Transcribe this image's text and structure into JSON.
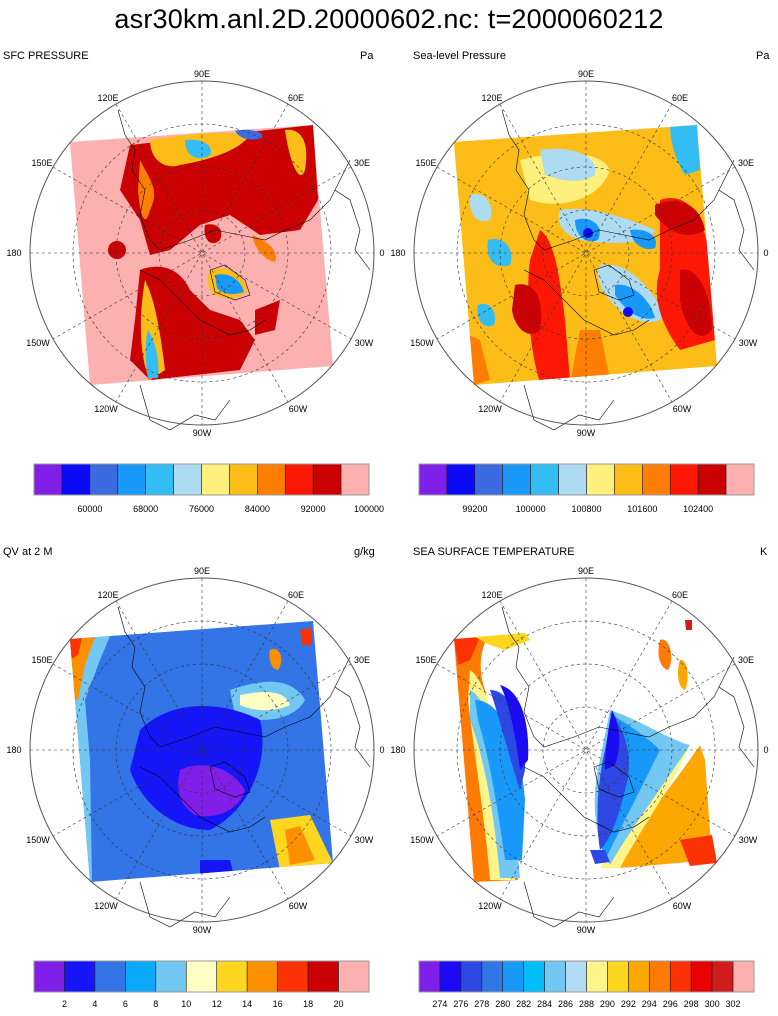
{
  "title": "asr30km.anl.2D.20000602.nc:    t=2000060212",
  "lon_labels": [
    "90E",
    "60E",
    "30E",
    "0",
    "30W",
    "60W",
    "90W",
    "120W",
    "150W",
    "180",
    "150E",
    "120E"
  ],
  "panels": [
    {
      "id": "sfc-pressure",
      "title": "SFC PRESSURE",
      "units": "Pa",
      "colorbar": {
        "colors": [
          "#7f1fe8",
          "#0a0af5",
          "#3d6ae0",
          "#1898f8",
          "#33bdf3",
          "#addcf2",
          "#fdf07c",
          "#fdbd18",
          "#fd7e04",
          "#fd1705",
          "#cb0002",
          "#fdb0b0"
        ],
        "labels": [
          "60000",
          "68000",
          "76000",
          "84000",
          "92000",
          "100000"
        ],
        "label_boundaries": [
          2,
          4,
          6,
          8,
          10,
          12
        ]
      }
    },
    {
      "id": "sea-level-pressure",
      "title": "Sea-level Pressure",
      "units": "Pa",
      "colorbar": {
        "colors": [
          "#7f1fe8",
          "#0a0af5",
          "#3d6ae0",
          "#1898f8",
          "#33bdf3",
          "#addcf2",
          "#fdf07c",
          "#fdbd18",
          "#fd7e04",
          "#fd1705",
          "#cb0002",
          "#fdb0b0"
        ],
        "labels": [
          "99200",
          "100000",
          "100800",
          "101600",
          "102400"
        ],
        "label_boundaries": [
          2,
          4,
          6,
          8,
          10
        ]
      }
    },
    {
      "id": "qv-2m",
      "title": "QV at 2 M",
      "units": "g/kg",
      "colorbar": {
        "colors": [
          "#7f1fe8",
          "#1515fa",
          "#3374e6",
          "#0aa9fa",
          "#72c8f3",
          "#ffffc4",
          "#fdd620",
          "#fd9000",
          "#fd3204",
          "#cb0002",
          "#fdb0b0"
        ],
        "labels": [
          "2",
          "4",
          "6",
          "8",
          "10",
          "12",
          "14",
          "16",
          "18",
          "20"
        ],
        "label_boundaries": [
          1,
          2,
          3,
          4,
          5,
          6,
          7,
          8,
          9,
          10
        ]
      }
    },
    {
      "id": "sea-surface-temperature",
      "title": "SEA SURFACE TEMPERATURE",
      "units": "K",
      "colorbar": {
        "colors": [
          "#7f1fe8",
          "#1a0af5",
          "#2e48e4",
          "#3076e6",
          "#1898f8",
          "#03bdf9",
          "#72c8f3",
          "#b2dcf3",
          "#fdf58a",
          "#fdd620",
          "#fda800",
          "#fd7b04",
          "#fd3204",
          "#e90000",
          "#d01c1c",
          "#fdb0b0"
        ],
        "labels": [
          "274",
          "276",
          "278",
          "280",
          "282",
          "284",
          "286",
          "288",
          "290",
          "292",
          "294",
          "296",
          "298",
          "300",
          "302"
        ],
        "label_boundaries": [
          1,
          2,
          3,
          4,
          5,
          6,
          7,
          8,
          9,
          10,
          11,
          12,
          13,
          14,
          15
        ]
      }
    }
  ]
}
